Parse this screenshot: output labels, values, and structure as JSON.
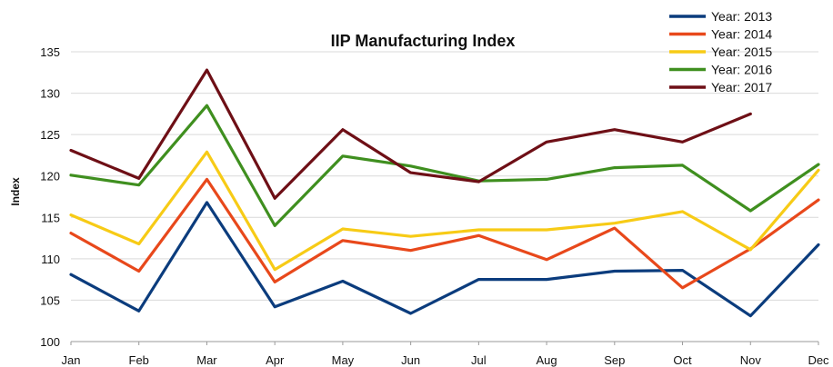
{
  "chart_data": {
    "type": "line",
    "title": "IIP Manufacturing Index",
    "xlabel": "",
    "ylabel": "Index",
    "ylim": [
      100,
      135
    ],
    "yticks": [
      100,
      105,
      110,
      115,
      120,
      125,
      130,
      135
    ],
    "grid": true,
    "legend_position": "top-right",
    "categories": [
      "Jan",
      "Feb",
      "Mar",
      "Apr",
      "May",
      "Jun",
      "Jul",
      "Aug",
      "Sep",
      "Oct",
      "Nov",
      "Dec"
    ],
    "series": [
      {
        "name": "Year: 2013",
        "color": "#0b3c7d",
        "values": [
          108.1,
          103.7,
          116.8,
          104.2,
          107.3,
          103.4,
          107.5,
          107.5,
          108.5,
          108.6,
          103.1,
          111.7
        ]
      },
      {
        "name": "Year: 2014",
        "color": "#e8481b",
        "values": [
          113.1,
          108.5,
          119.6,
          107.2,
          112.2,
          111.0,
          112.8,
          109.9,
          113.7,
          106.5,
          111.2,
          117.1
        ]
      },
      {
        "name": "Year: 2015",
        "color": "#f7cb16",
        "values": [
          115.3,
          111.8,
          122.9,
          108.7,
          113.6,
          112.7,
          113.5,
          113.5,
          114.3,
          115.7,
          111.1,
          120.7
        ]
      },
      {
        "name": "Year: 2016",
        "color": "#3f8f1f",
        "values": [
          120.1,
          118.9,
          128.5,
          114.0,
          122.4,
          121.2,
          119.4,
          119.6,
          121.0,
          121.3,
          115.8,
          121.4
        ]
      },
      {
        "name": "Year: 2017",
        "color": "#6e0f16",
        "values": [
          123.1,
          119.7,
          132.8,
          117.3,
          125.6,
          120.4,
          119.3,
          124.1,
          125.6,
          124.1,
          127.5,
          null
        ]
      }
    ]
  }
}
